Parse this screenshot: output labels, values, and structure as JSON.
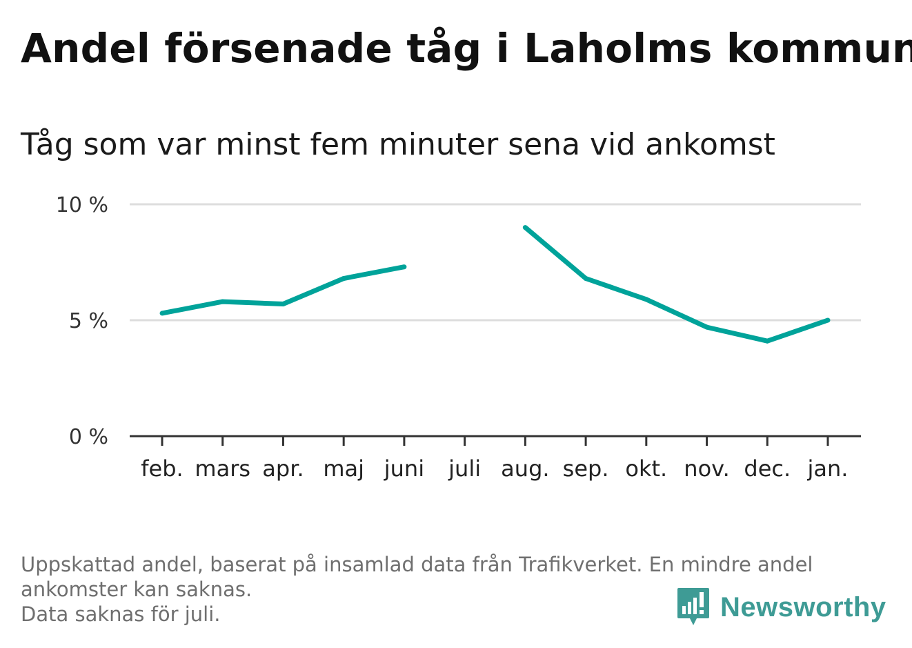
{
  "title": "Andel försenade tåg i Laholms kommun",
  "subtitle": "Tåg som var minst fem minuter sena vid ankomst",
  "footnote": {
    "line1": "Uppskattad andel, baserat på insamlad data från Trafikverket. En mindre andel",
    "line2": "ankomster kan saknas.",
    "line3": "Data saknas för juli."
  },
  "logo": {
    "text": "Newsworthy",
    "icon": "newsworthy-logo-icon"
  },
  "colors": {
    "line": "#00a39a",
    "grid": "#dddddd",
    "axis": "#333333",
    "logo": "#3e9b95"
  },
  "chart_data": {
    "type": "line",
    "categories": [
      "feb.",
      "mars",
      "apr.",
      "maj",
      "juni",
      "juli",
      "aug.",
      "sep.",
      "okt.",
      "nov.",
      "dec.",
      "jan."
    ],
    "series": [
      {
        "values": [
          5.3,
          5.8,
          5.7,
          6.8,
          7.3,
          null,
          9.0,
          6.8,
          5.9,
          4.7,
          4.1,
          5.0
        ]
      }
    ],
    "ylim": [
      0,
      10
    ],
    "yticks": [
      {
        "value": 0,
        "label": "0 %"
      },
      {
        "value": 5,
        "label": "5 %"
      },
      {
        "value": 10,
        "label": "10 %"
      }
    ],
    "grid": true,
    "xlabel": "",
    "ylabel": ""
  }
}
